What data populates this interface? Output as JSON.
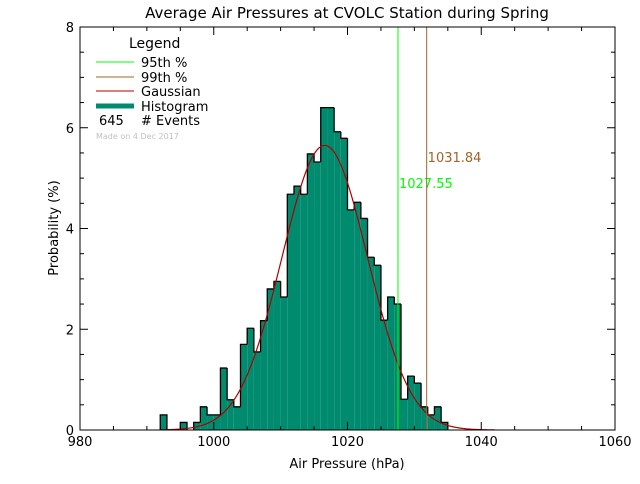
{
  "chart_data": {
    "type": "bar",
    "title": "Average Air Pressures at CVOLC Station during Spring",
    "xlabel": "Air Pressure (hPa)",
    "ylabel": "Probability (%)",
    "xlim": [
      980,
      1060
    ],
    "ylim": [
      0,
      8
    ],
    "xticks": [
      "980",
      "1000",
      "1020",
      "1040",
      "1060"
    ],
    "yticks": [
      "0",
      "2",
      "4",
      "6",
      "8"
    ],
    "grid": false,
    "legend_placement": "top-left",
    "legend": {
      "title": "Legend",
      "entries": [
        "95th %",
        "99th %",
        "Gaussian",
        "Histogram"
      ],
      "events_count": "645",
      "events_label": "# Events",
      "made_on": "Made on 4 Dec 2017"
    },
    "colors": {
      "p95": "#00ff00",
      "p99": "#a0642a",
      "gaussian": "#b00000",
      "histogram": "#008b6e"
    },
    "histogram": {
      "bin_width": 1,
      "bin_starts": [
        992,
        995,
        997,
        998,
        999,
        1000,
        1001,
        1002,
        1003,
        1004,
        1005,
        1006,
        1007,
        1008,
        1009,
        1010,
        1011,
        1012,
        1013,
        1014,
        1015,
        1016,
        1017,
        1018,
        1019,
        1020,
        1021,
        1022,
        1023,
        1024,
        1025,
        1026,
        1027,
        1028,
        1029,
        1030,
        1031,
        1032,
        1033,
        1034
      ],
      "values": [
        0.3,
        0.15,
        0.15,
        0.46,
        0.3,
        0.3,
        1.23,
        0.6,
        0.46,
        1.7,
        2.02,
        1.55,
        2.17,
        2.8,
        2.95,
        2.64,
        4.68,
        4.84,
        4.68,
        5.48,
        5.32,
        6.4,
        6.4,
        5.92,
        5.79,
        4.37,
        4.52,
        4.2,
        3.43,
        3.27,
        2.18,
        2.64,
        2.5,
        0.61,
        1.07,
        0.93,
        0.46,
        0.3,
        0.46,
        0.15
      ]
    },
    "gaussian": {
      "mean": 1016.6,
      "sigma": 6.4,
      "peak": 5.65
    },
    "percentiles": [
      {
        "name": "95th %",
        "value": 1027.55,
        "label": "1027.55"
      },
      {
        "name": "99th %",
        "value": 1031.84,
        "label": "1031.84"
      }
    ]
  }
}
